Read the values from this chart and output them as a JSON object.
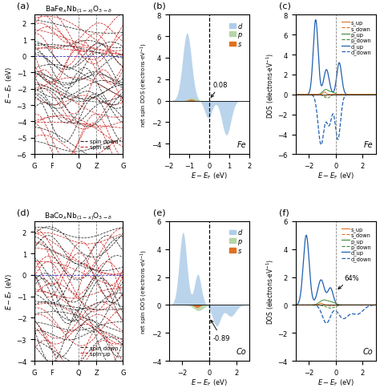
{
  "title_a": "BaFe$_x$Nb$_{(1-x)}$O$_{3-\\delta}$",
  "title_d": "BaCo$_x$Nb$_{(1-x)}$O$_{3-\\delta}$",
  "panel_labels": [
    "(a)",
    "(b)",
    "(c)",
    "(d)",
    "(e)",
    "(f)"
  ],
  "band_kpoints": [
    "G",
    "F",
    "Q",
    "Z",
    "G"
  ],
  "band_ylim_a": [
    -6,
    2.5
  ],
  "band_ylim_d": [
    -4,
    2.5
  ],
  "dos_b_xlim": [
    -2,
    2
  ],
  "dos_b_ylim": [
    -5,
    8
  ],
  "dos_c_xlim": [
    -3,
    3
  ],
  "dos_c_ylim": [
    -6,
    8
  ],
  "dos_e_xlim": [
    -3,
    3
  ],
  "dos_e_ylim": [
    -4,
    6
  ],
  "dos_f_xlim": [
    -3,
    3
  ],
  "dos_f_ylim": [
    -4,
    6
  ],
  "color_d_fill": "#aecde8",
  "color_p_fill": "#b5d5a8",
  "color_s_fill": "#e07020",
  "color_spin_up": "#cc2222",
  "color_spin_down": "#222222",
  "color_d_up_line": "#2060b0",
  "color_p_up_line": "#3a8a3a",
  "color_s_up_line": "#e07020",
  "annotation_b": "0.08",
  "annotation_e": "-0.89",
  "annotation_f": "64%",
  "ylabel_band": "$E-E_{\\rm F}$ (eV)",
  "ylabel_dos_net": "net spin DOS (electrons$\\cdot$eV$^{-1}$)",
  "ylabel_dos": "DOS (electrons$\\cdot$eV$^{-1}$)",
  "xlabel_dos": "$E-E_{\\rm F}$ (eV)"
}
